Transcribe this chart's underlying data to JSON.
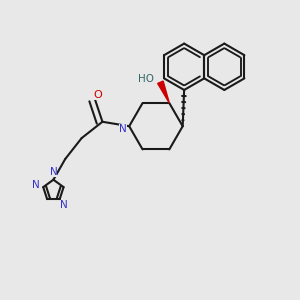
{
  "bg_color": "#e8e8e8",
  "bond_color": "#1a1a1a",
  "n_color": "#3333cc",
  "o_color": "#cc0000",
  "ho_color": "#336666",
  "line_width": 1.5,
  "fig_w": 3.0,
  "fig_h": 3.0,
  "dpi": 100,
  "xlim": [
    0,
    10
  ],
  "ylim": [
    0,
    10
  ]
}
